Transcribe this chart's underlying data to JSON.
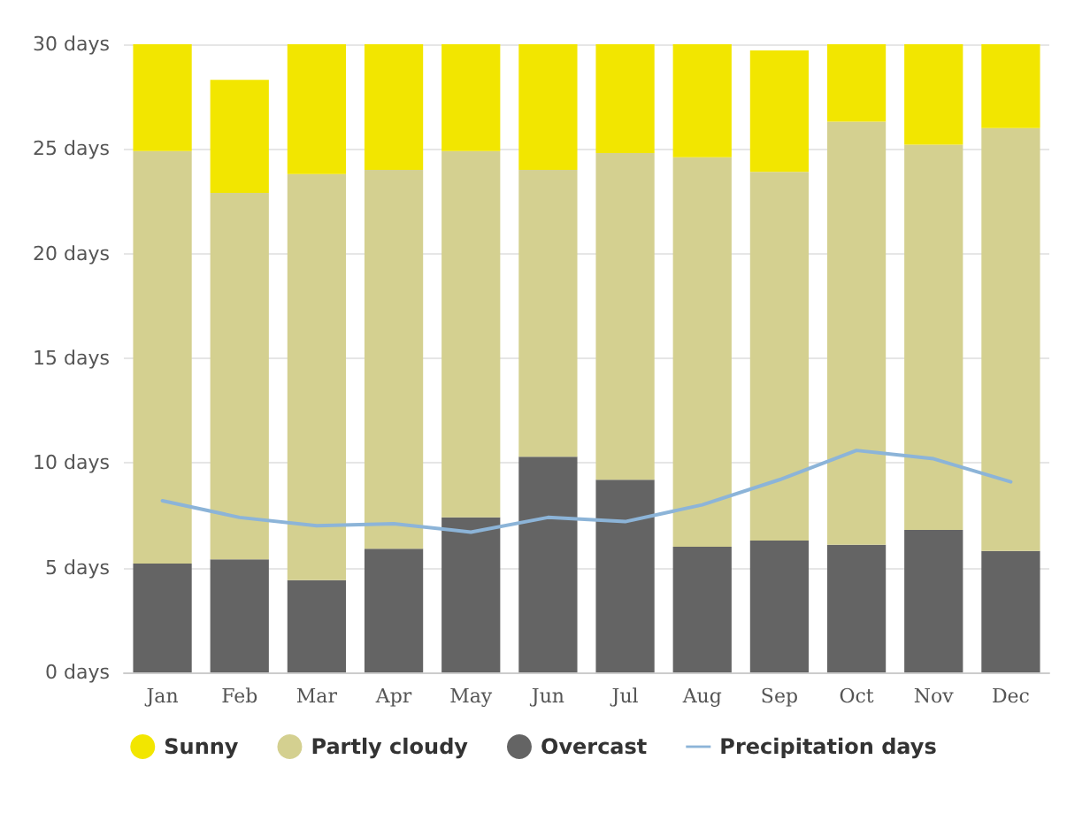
{
  "chart_data": {
    "type": "bar",
    "stacked": true,
    "categories": [
      "Jan",
      "Feb",
      "Mar",
      "Apr",
      "May",
      "Jun",
      "Jul",
      "Aug",
      "Sep",
      "Oct",
      "Nov",
      "Dec"
    ],
    "series": [
      {
        "name": "Overcast",
        "color": "#646464",
        "values": [
          5.2,
          5.4,
          4.4,
          5.9,
          7.4,
          10.3,
          9.2,
          6.0,
          6.3,
          6.1,
          6.8,
          5.8
        ]
      },
      {
        "name": "Partly cloudy",
        "color": "#d4d090",
        "values": [
          19.7,
          17.5,
          19.4,
          18.1,
          17.5,
          13.7,
          15.6,
          18.6,
          17.6,
          20.2,
          18.4,
          20.2
        ]
      },
      {
        "name": "Sunny",
        "color": "#f2e600",
        "values": [
          5.1,
          5.4,
          6.2,
          6.0,
          5.1,
          6.0,
          5.2,
          5.4,
          5.8,
          3.7,
          4.8,
          4.0
        ]
      },
      {
        "name": "Precipitation days",
        "type": "line",
        "color": "#8cb4d8",
        "values": [
          8.2,
          7.4,
          7.0,
          7.1,
          6.7,
          7.4,
          7.2,
          8.0,
          9.2,
          10.6,
          10.2,
          9.1
        ]
      }
    ],
    "ylim": [
      0,
      30
    ],
    "yticks": [
      {
        "value": 0,
        "label": "0 days"
      },
      {
        "value": 5,
        "label": "5 days"
      },
      {
        "value": 10,
        "label": "10 days"
      },
      {
        "value": 15,
        "label": "15 days"
      },
      {
        "value": 20,
        "label": "20 days"
      },
      {
        "value": 25,
        "label": "25 days"
      },
      {
        "value": 30,
        "label": "30 days"
      }
    ],
    "grid": "y",
    "legend": "bottom",
    "marker": "none",
    "line_style": "solid"
  }
}
